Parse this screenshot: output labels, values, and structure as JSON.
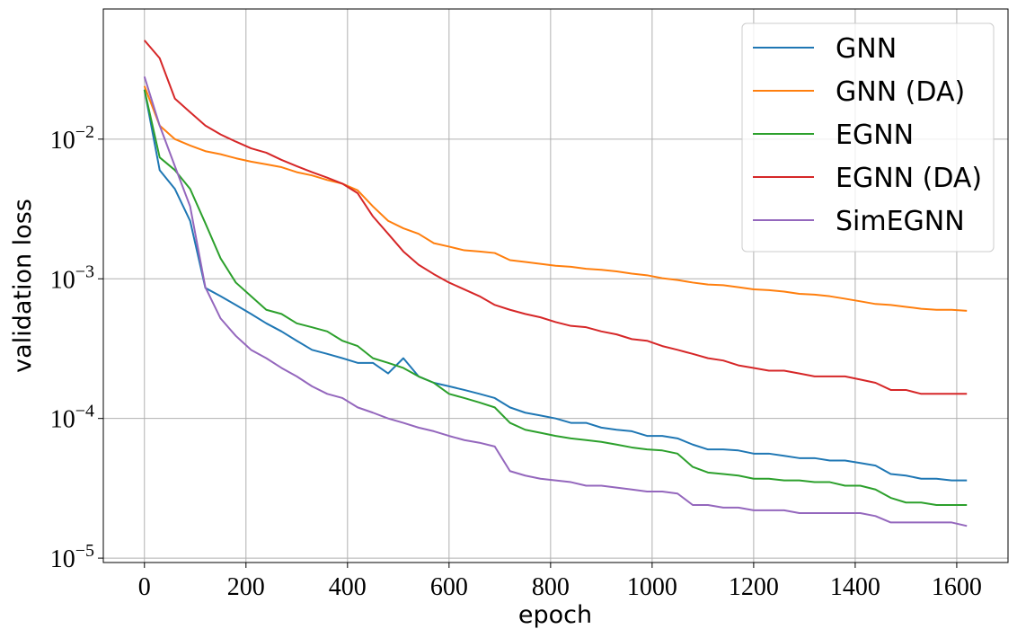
{
  "chart_data": {
    "type": "line",
    "x_label": "epoch",
    "y_label": "validation loss",
    "yscale": "log",
    "grid": true,
    "legend": "upper right",
    "xlim": [
      -81,
      1701
    ],
    "ylim": [
      9.3e-06,
      0.0855
    ],
    "xticks": [
      0,
      200,
      400,
      600,
      800,
      1000,
      1200,
      1400,
      1600
    ],
    "yticks": [
      {
        "value": 1e-05,
        "label": "10−5"
      },
      {
        "value": 0.0001,
        "label": "10−4"
      },
      {
        "value": 0.001,
        "label": "10−3"
      },
      {
        "value": 0.01,
        "label": "10−2"
      }
    ],
    "x": [
      0,
      30,
      60,
      90,
      120,
      150,
      180,
      210,
      240,
      270,
      300,
      330,
      360,
      390,
      420,
      450,
      480,
      510,
      540,
      570,
      600,
      630,
      660,
      690,
      720,
      750,
      780,
      810,
      840,
      870,
      900,
      930,
      960,
      990,
      1020,
      1050,
      1080,
      1110,
      1140,
      1170,
      1200,
      1230,
      1260,
      1290,
      1320,
      1350,
      1380,
      1410,
      1440,
      1470,
      1500,
      1530,
      1560,
      1590,
      1620
    ],
    "series": [
      {
        "name": "GNN",
        "color": "#1f77b4",
        "values": [
          0.0226,
          0.006,
          0.0044,
          0.0026,
          0.00086,
          0.00075,
          0.00065,
          0.00056,
          0.00048,
          0.00042,
          0.00036,
          0.00031,
          0.00029,
          0.00027,
          0.00025,
          0.00025,
          0.00021,
          0.00027,
          0.0002,
          0.00018,
          0.00017,
          0.00016,
          0.00015,
          0.00014,
          0.00012,
          0.00011,
          0.000105,
          0.0001,
          9.3e-05,
          9.3e-05,
          8.6e-05,
          8.3e-05,
          8.1e-05,
          7.5e-05,
          7.5e-05,
          7.2e-05,
          6.5e-05,
          6e-05,
          6e-05,
          5.9e-05,
          5.6e-05,
          5.6e-05,
          5.4e-05,
          5.2e-05,
          5.2e-05,
          5e-05,
          5e-05,
          4.8e-05,
          4.6e-05,
          4e-05,
          3.9e-05,
          3.7e-05,
          3.7e-05,
          3.6e-05,
          3.6e-05
        ]
      },
      {
        "name": "GNN (DA)",
        "color": "#ff7f0e",
        "values": [
          0.024,
          0.0125,
          0.01,
          0.009,
          0.0082,
          0.0078,
          0.0073,
          0.0069,
          0.0066,
          0.0063,
          0.0058,
          0.0055,
          0.0051,
          0.0048,
          0.0043,
          0.0033,
          0.0026,
          0.0023,
          0.0021,
          0.0018,
          0.0017,
          0.0016,
          0.00157,
          0.00153,
          0.00136,
          0.00132,
          0.00128,
          0.00124,
          0.00122,
          0.00118,
          0.00116,
          0.00113,
          0.00109,
          0.00106,
          0.00101,
          0.00098,
          0.00094,
          0.00091,
          0.0009,
          0.00087,
          0.00084,
          0.00083,
          0.00081,
          0.00078,
          0.00077,
          0.00075,
          0.00072,
          0.00069,
          0.00066,
          0.00065,
          0.00063,
          0.00061,
          0.0006,
          0.0006,
          0.00059
        ]
      },
      {
        "name": "EGNN",
        "color": "#2ca02c",
        "values": [
          0.0226,
          0.0074,
          0.006,
          0.0044,
          0.0025,
          0.0014,
          0.00094,
          0.00075,
          0.0006,
          0.00056,
          0.00048,
          0.00045,
          0.00042,
          0.00036,
          0.00033,
          0.00027,
          0.00025,
          0.00023,
          0.0002,
          0.00018,
          0.00015,
          0.00014,
          0.00013,
          0.00012,
          9.3e-05,
          8.3e-05,
          7.9e-05,
          7.5e-05,
          7.2e-05,
          7e-05,
          6.8e-05,
          6.5e-05,
          6.2e-05,
          6e-05,
          5.9e-05,
          5.6e-05,
          4.5e-05,
          4.1e-05,
          4e-05,
          3.9e-05,
          3.7e-05,
          3.7e-05,
          3.6e-05,
          3.6e-05,
          3.5e-05,
          3.5e-05,
          3.3e-05,
          3.3e-05,
          3.1e-05,
          2.7e-05,
          2.5e-05,
          2.5e-05,
          2.4e-05,
          2.4e-05,
          2.4e-05
        ]
      },
      {
        "name": "EGNN (DA)",
        "color": "#d62728",
        "values": [
          0.051,
          0.038,
          0.0195,
          0.0156,
          0.0125,
          0.0108,
          0.0096,
          0.0086,
          0.008,
          0.0071,
          0.0064,
          0.0058,
          0.0053,
          0.0048,
          0.0041,
          0.0028,
          0.0021,
          0.00157,
          0.00126,
          0.00108,
          0.00094,
          0.00084,
          0.00075,
          0.00065,
          0.0006,
          0.00056,
          0.00053,
          0.00049,
          0.00046,
          0.00045,
          0.00042,
          0.0004,
          0.00037,
          0.00036,
          0.00033,
          0.00031,
          0.00029,
          0.00027,
          0.00026,
          0.00024,
          0.00023,
          0.00022,
          0.00022,
          0.00021,
          0.0002,
          0.0002,
          0.0002,
          0.00019,
          0.00018,
          0.00016,
          0.00016,
          0.00015,
          0.00015,
          0.00015,
          0.00015
        ]
      },
      {
        "name": "SimEGNN",
        "color": "#9467bd",
        "values": [
          0.028,
          0.0125,
          0.0064,
          0.0033,
          0.00087,
          0.00052,
          0.00039,
          0.00031,
          0.00027,
          0.00023,
          0.0002,
          0.00017,
          0.00015,
          0.00014,
          0.00012,
          0.00011,
          0.0001,
          9.3e-05,
          8.6e-05,
          8.1e-05,
          7.5e-05,
          7e-05,
          6.7e-05,
          6.3e-05,
          4.2e-05,
          3.9e-05,
          3.7e-05,
          3.6e-05,
          3.5e-05,
          3.3e-05,
          3.3e-05,
          3.2e-05,
          3.1e-05,
          3e-05,
          3e-05,
          2.9e-05,
          2.4e-05,
          2.4e-05,
          2.3e-05,
          2.3e-05,
          2.2e-05,
          2.2e-05,
          2.2e-05,
          2.1e-05,
          2.1e-05,
          2.1e-05,
          2.1e-05,
          2.1e-05,
          2e-05,
          1.8e-05,
          1.8e-05,
          1.8e-05,
          1.8e-05,
          1.8e-05,
          1.7e-05
        ]
      }
    ]
  }
}
